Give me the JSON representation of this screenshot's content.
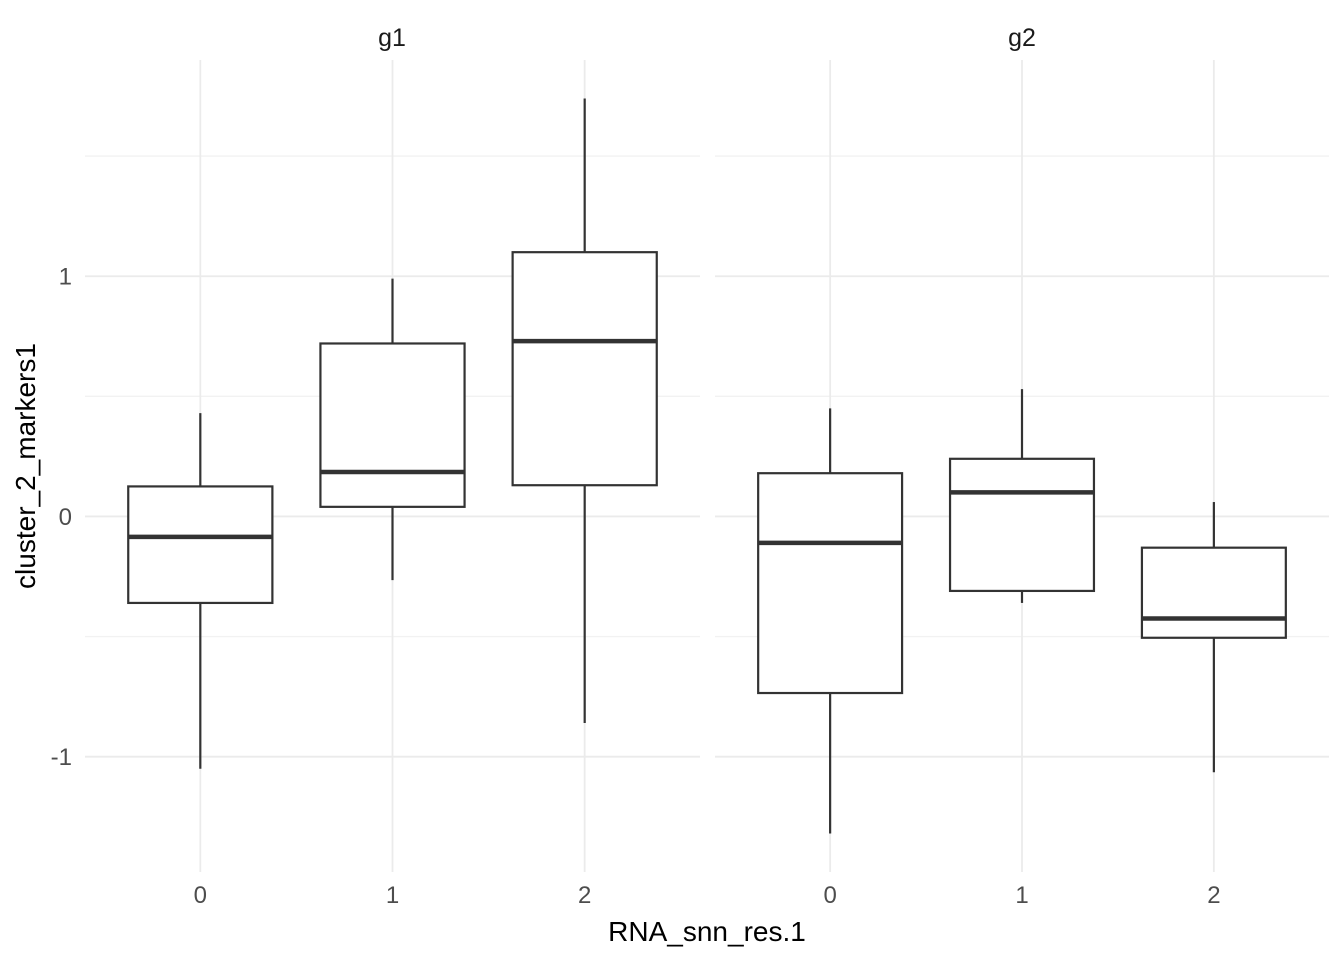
{
  "chart_data": {
    "type": "boxplot",
    "title": "",
    "xlabel": "RNA_snn_res.1",
    "ylabel": "cluster_2_markers1",
    "categories": [
      "0",
      "1",
      "2"
    ],
    "ylim": [
      -1.48,
      1.9
    ],
    "y_major_ticks": [
      {
        "value": 1,
        "label": "1"
      },
      {
        "value": 0,
        "label": "0"
      },
      {
        "value": -1,
        "label": "-1"
      }
    ],
    "y_minor_ticks": [
      1.5,
      0.5,
      -0.5
    ],
    "grid": "horizontal major+minor, vertical at category centers",
    "legend_position": "none",
    "facets": [
      {
        "label": "g1",
        "boxes": [
          {
            "category": "0",
            "whisker_low": -1.05,
            "q1": -0.36,
            "median": -0.085,
            "q3": 0.125,
            "whisker_high": 0.43
          },
          {
            "category": "1",
            "whisker_low": -0.265,
            "q1": 0.04,
            "median": 0.185,
            "q3": 0.72,
            "whisker_high": 0.99
          },
          {
            "category": "2",
            "whisker_low": -0.86,
            "q1": 0.13,
            "median": 0.73,
            "q3": 1.1,
            "whisker_high": 1.74
          }
        ]
      },
      {
        "label": "g2",
        "boxes": [
          {
            "category": "0",
            "whisker_low": -1.32,
            "q1": -0.735,
            "median": -0.11,
            "q3": 0.18,
            "whisker_high": 0.45
          },
          {
            "category": "1",
            "whisker_low": -0.36,
            "q1": -0.31,
            "median": 0.1,
            "q3": 0.24,
            "whisker_high": 0.53
          },
          {
            "category": "2",
            "whisker_low": -1.065,
            "q1": -0.505,
            "median": -0.425,
            "q3": -0.13,
            "whisker_high": 0.06
          }
        ]
      }
    ],
    "style": {
      "background": "#ffffff",
      "grid_major_color": "#ebebeb",
      "grid_minor_color": "#f2f2f2",
      "box_stroke_color": "#333333",
      "box_fill_color": "#ffffff",
      "tick_label_color": "#4d4d4d",
      "axis_title_color": "#000000",
      "strip_label_color": "#1a1a1a"
    }
  }
}
